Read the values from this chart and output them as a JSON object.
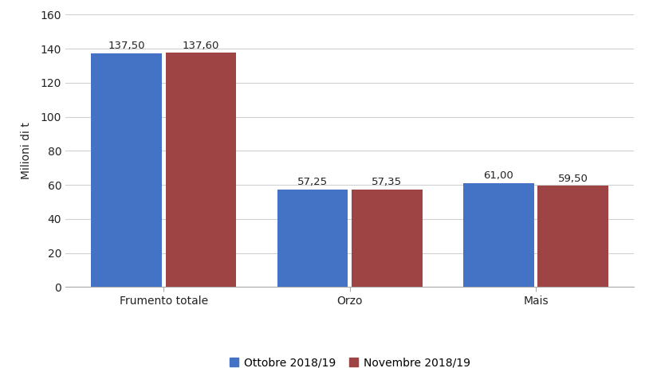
{
  "categories": [
    "Frumento totale",
    "Orzo",
    "Mais"
  ],
  "ottobre_values": [
    137.5,
    57.25,
    61.0
  ],
  "novembre_values": [
    137.6,
    57.35,
    59.5
  ],
  "ottobre_label": "Ottobre 2018/19",
  "novembre_label": "Novembre 2018/19",
  "ottobre_color": "#4472C4",
  "novembre_color": "#9E4444",
  "ylabel": "Milioni di t",
  "ylim": [
    0,
    160
  ],
  "yticks": [
    0,
    20,
    40,
    60,
    80,
    100,
    120,
    140,
    160
  ],
  "bar_width": 0.38,
  "value_label_fontsize": 9.5,
  "axis_label_fontsize": 10,
  "tick_label_fontsize": 10,
  "legend_fontsize": 10,
  "background_color": "#ffffff",
  "grid_color": "#d0d0d0",
  "value_labels_ottobre": [
    "137,50",
    "57,25",
    "61,00"
  ],
  "value_labels_novembre": [
    "137,60",
    "57,35",
    "59,50"
  ]
}
